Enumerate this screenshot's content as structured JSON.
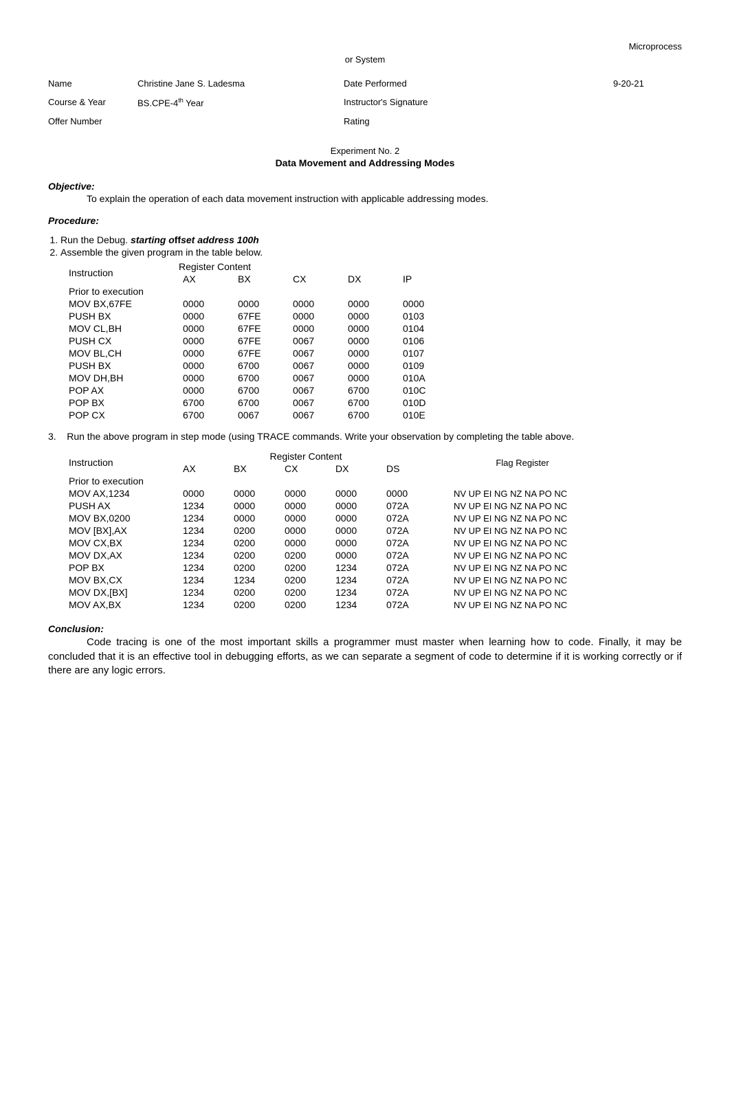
{
  "header": {
    "top_right": "Microprocess",
    "center": "or System"
  },
  "info": {
    "name_label": "Name",
    "name_value": "Christine Jane S. Ladesma",
    "date_label": "Date Performed",
    "date_value": "9-20-21",
    "course_label": "Course & Year",
    "course_value": "BS.CPE-4",
    "course_suffix": "th",
    "course_tail": " Year",
    "sig_label": "Instructor's Signature",
    "offer_label": "Offer Number",
    "rating_label": "Rating"
  },
  "experiment": {
    "no": "Experiment No. 2",
    "title": "Data Movement and Addressing Modes"
  },
  "objective": {
    "head": "Objective:",
    "text": "To explain the operation of each data movement instruction with applicable addressing modes."
  },
  "procedure": {
    "head": "Procedure:",
    "steps": {
      "s1a": "Run the Debug.  ",
      "s1b_italic": "starting o",
      "s1b_mid": "ff",
      "s1b_italic2": "set address 100h",
      "s2": "Assemble the given program in the table below.",
      "s3": "Run the above program in step mode (using TRACE commands.  Write your observation by completing the table above."
    }
  },
  "table1": {
    "hdr_instr": "Instruction",
    "hdr_group": "Register Content",
    "cols": [
      "AX",
      "BX",
      "CX",
      "DX",
      "IP"
    ],
    "prior": "Prior to execution",
    "rows": [
      {
        "i": "MOV BX,67FE",
        "v": [
          "0000",
          "0000",
          "0000",
          "0000",
          "0000"
        ]
      },
      {
        "i": "PUSH BX",
        "v": [
          "0000",
          "67FE",
          "0000",
          "0000",
          "0103"
        ]
      },
      {
        "i": "MOV CL,BH",
        "v": [
          "0000",
          "67FE",
          "0000",
          "0000",
          "0104"
        ]
      },
      {
        "i": "PUSH CX",
        "v": [
          "0000",
          "67FE",
          "0067",
          "0000",
          "0106"
        ]
      },
      {
        "i": "MOV BL,CH",
        "v": [
          "0000",
          "67FE",
          "0067",
          "0000",
          "0107"
        ]
      },
      {
        "i": "PUSH BX",
        "v": [
          "0000",
          "6700",
          "0067",
          "0000",
          "0109"
        ]
      },
      {
        "i": "MOV DH,BH",
        "v": [
          "0000",
          "6700",
          "0067",
          "0000",
          "010A"
        ]
      },
      {
        "i": "POP AX",
        "v": [
          "0000",
          "6700",
          "0067",
          "6700",
          "010C"
        ]
      },
      {
        "i": "POP BX",
        "v": [
          "6700",
          "6700",
          "0067",
          "6700",
          "010D"
        ]
      },
      {
        "i": "POP CX",
        "v": [
          "6700",
          "0067",
          "0067",
          "6700",
          "010E"
        ]
      }
    ]
  },
  "table2": {
    "hdr_instr": "Instruction",
    "hdr_group": "Register Content",
    "hdr_flag": "Flag Register",
    "cols": [
      "AX",
      "BX",
      "CX",
      "DX",
      "DS"
    ],
    "prior": "Prior to execution",
    "rows": [
      {
        "i": "MOV AX,1234",
        "v": [
          "0000",
          "0000",
          "0000",
          "0000",
          "0000"
        ],
        "f": "NV UP EI NG NZ NA PO NC"
      },
      {
        "i": "PUSH AX",
        "v": [
          "1234",
          "0000",
          "0000",
          "0000",
          "072A"
        ],
        "f": "NV UP EI NG NZ NA PO NC"
      },
      {
        "i": "MOV BX,0200",
        "v": [
          "1234",
          "0000",
          "0000",
          "0000",
          "072A"
        ],
        "f": "NV UP EI NG NZ NA PO NC"
      },
      {
        "i": "MOV [BX],AX",
        "v": [
          "1234",
          "0200",
          "0000",
          "0000",
          "072A"
        ],
        "f": "NV UP EI NG NZ NA PO NC"
      },
      {
        "i": "MOV CX,BX",
        "v": [
          "1234",
          "0200",
          "0000",
          "0000",
          "072A"
        ],
        "f": "NV UP EI NG NZ NA PO NC"
      },
      {
        "i": "MOV DX,AX",
        "v": [
          "1234",
          "0200",
          "0200",
          "0000",
          "072A"
        ],
        "f": "NV UP EI NG NZ NA PO NC"
      },
      {
        "i": "POP BX",
        "v": [
          "1234",
          "0200",
          "0200",
          "1234",
          "072A"
        ],
        "f": "NV UP EI NG NZ NA PO NC"
      },
      {
        "i": "MOV BX,CX",
        "v": [
          "1234",
          "1234",
          "0200",
          "1234",
          "072A"
        ],
        "f": "NV UP EI NG NZ NA PO NC"
      },
      {
        "i": "MOV DX,[BX]",
        "v": [
          "1234",
          "0200",
          "0200",
          "1234",
          "072A"
        ],
        "f": "NV UP EI NG NZ NA PO NC"
      },
      {
        "i": "MOV AX,BX",
        "v": [
          "1234",
          "0200",
          "0200",
          "1234",
          "072A"
        ],
        "f": "NV UP EI NG NZ NA PO NC"
      }
    ]
  },
  "conclusion": {
    "head": "Conclusion:",
    "text": "Code tracing is one of the most important skills a programmer must master when learning how to code. Finally, it may be concluded that it is an effective tool in debugging efforts, as we can separate a segment of code to determine if it is working correctly or if there are any logic errors."
  }
}
